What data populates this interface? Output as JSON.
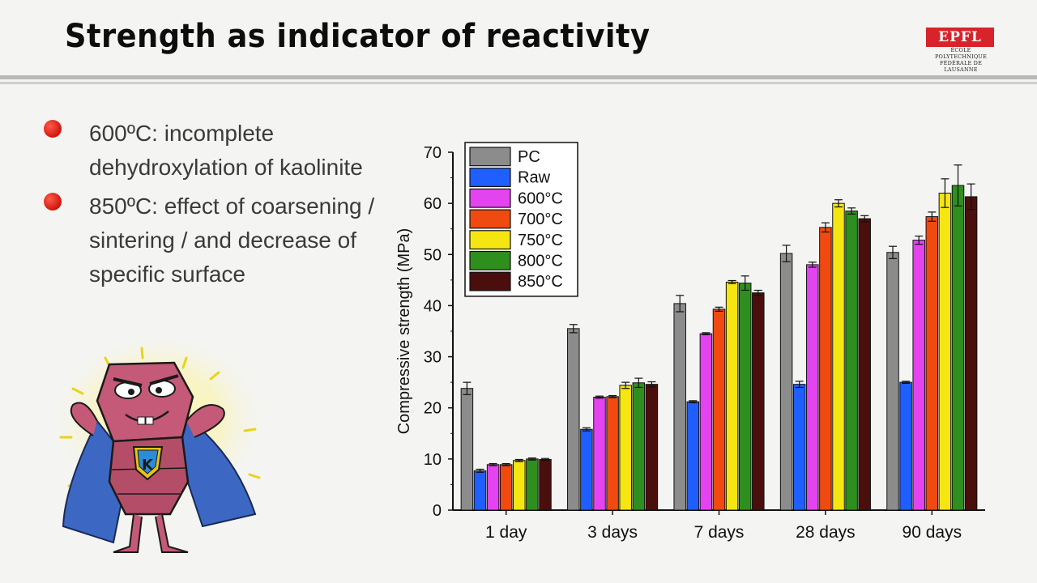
{
  "slide": {
    "title": "Strength as indicator of reactivity",
    "logo": {
      "mark": "EPFL",
      "line1": "ÉCOLE POLYTECHNIQUE",
      "line2": "FÉDÉRALE DE LAUSANNE"
    },
    "bullets": [
      "600ºC: incomplete dehydroxylation of kaolinite",
      "850ºC: effect of coarsening / sintering / and decrease of specific surface"
    ],
    "mascot_letter": "K"
  },
  "chart_data": {
    "type": "bar",
    "ylabel": "Compressive strength (MPa)",
    "ylim": [
      0,
      70
    ],
    "yticks": [
      0,
      10,
      20,
      30,
      40,
      50,
      60,
      70
    ],
    "categories": [
      "1 day",
      "3 days",
      "7 days",
      "28 days",
      "90 days"
    ],
    "legend_position": "top-left",
    "error_bars": true,
    "series": [
      {
        "name": "PC",
        "color": "#8c8c8c",
        "values": [
          23.8,
          35.5,
          40.4,
          50.2,
          50.4
        ],
        "errors": [
          1.2,
          0.8,
          1.6,
          1.6,
          1.2
        ]
      },
      {
        "name": "Raw",
        "color": "#1f5fff",
        "values": [
          7.7,
          15.8,
          21.2,
          24.6,
          25.0
        ],
        "errors": [
          0.3,
          0.3,
          0.2,
          0.6,
          0.2
        ]
      },
      {
        "name": "600°C",
        "color": "#e443f0",
        "values": [
          8.9,
          22.1,
          34.5,
          48.0,
          52.8
        ],
        "errors": [
          0.2,
          0.2,
          0.2,
          0.5,
          0.8
        ]
      },
      {
        "name": "700°C",
        "color": "#f04a10",
        "values": [
          8.9,
          22.2,
          39.3,
          55.3,
          57.4
        ],
        "errors": [
          0.2,
          0.2,
          0.4,
          0.9,
          0.9
        ]
      },
      {
        "name": "750°C",
        "color": "#f5e611",
        "values": [
          9.7,
          24.4,
          44.6,
          60.0,
          62.0
        ],
        "errors": [
          0.2,
          0.6,
          0.3,
          0.7,
          2.8
        ]
      },
      {
        "name": "800°C",
        "color": "#2f8f1e",
        "values": [
          10.0,
          24.9,
          44.4,
          58.5,
          63.5
        ],
        "errors": [
          0.2,
          0.9,
          1.4,
          0.6,
          4.0
        ]
      },
      {
        "name": "850°C",
        "color": "#4a0f0c",
        "values": [
          9.9,
          24.6,
          42.5,
          57.0,
          61.3
        ],
        "errors": [
          0.2,
          0.5,
          0.5,
          0.6,
          2.5
        ]
      }
    ]
  }
}
